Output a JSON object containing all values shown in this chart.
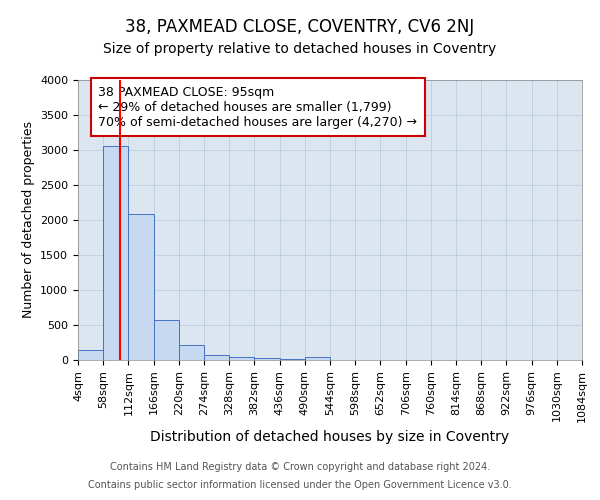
{
  "title1": "38, PAXMEAD CLOSE, COVENTRY, CV6 2NJ",
  "title2": "Size of property relative to detached houses in Coventry",
  "xlabel": "Distribution of detached houses by size in Coventry",
  "ylabel": "Number of detached properties",
  "annotation_line1": "38 PAXMEAD CLOSE: 95sqm",
  "annotation_line2": "← 29% of detached houses are smaller (1,799)",
  "annotation_line3": "70% of semi-detached houses are larger (4,270) →",
  "footer1": "Contains HM Land Registry data © Crown copyright and database right 2024.",
  "footer2": "Contains public sector information licensed under the Open Government Licence v3.0.",
  "bin_edges": [
    4,
    58,
    112,
    166,
    220,
    274,
    328,
    382,
    436,
    490,
    544,
    598,
    652,
    706,
    760,
    814,
    868,
    922,
    976,
    1030,
    1084
  ],
  "bar_heights": [
    150,
    3050,
    2080,
    570,
    210,
    70,
    40,
    30,
    20,
    50,
    0,
    0,
    0,
    0,
    0,
    0,
    0,
    0,
    0,
    0
  ],
  "bar_color": "#c6d9f0",
  "bar_edge_color": "#4472c4",
  "red_line_x": 95,
  "ylim": [
    0,
    4000
  ],
  "yticks": [
    0,
    500,
    1000,
    1500,
    2000,
    2500,
    3000,
    3500,
    4000
  ],
  "ax_facecolor": "#dce6f1",
  "background_color": "#ffffff",
  "grid_color": "#b8c8d8",
  "title1_fontsize": 12,
  "title2_fontsize": 10,
  "xlabel_fontsize": 10,
  "ylabel_fontsize": 9,
  "tick_fontsize": 8,
  "annotation_box_color": "#ffffff",
  "annotation_box_edge_color": "#cc0000",
  "annotation_fontsize": 9,
  "footer_fontsize": 7
}
